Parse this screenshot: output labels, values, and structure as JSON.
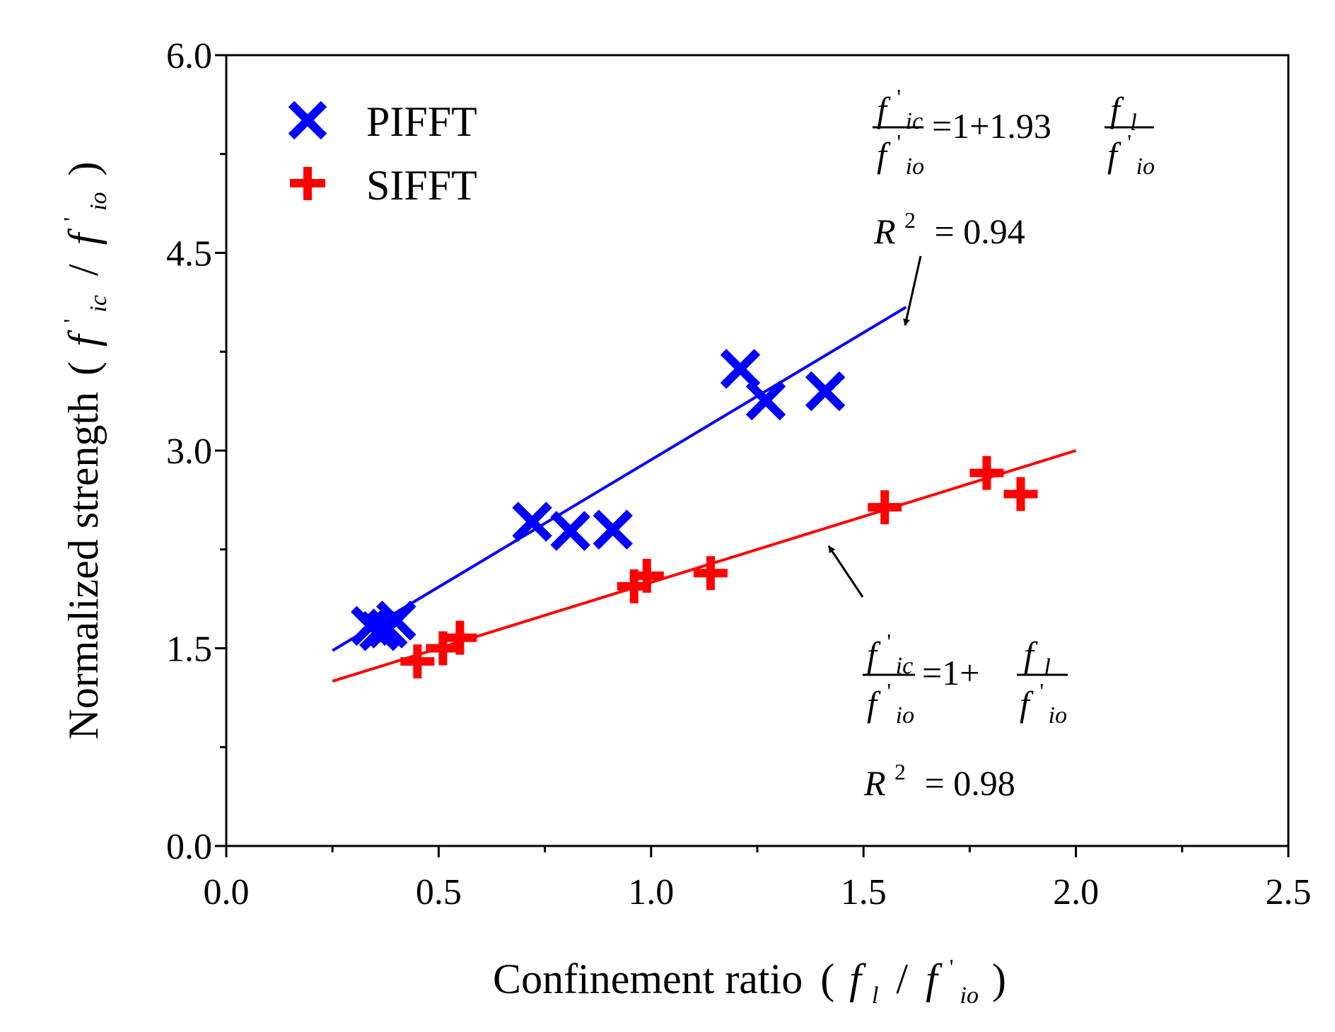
{
  "chart_data": {
    "type": "scatter",
    "xlabel": "Confinement ratio",
    "ylabel": "Normalized strength",
    "xlim": [
      0.0,
      2.5
    ],
    "ylim": [
      0.0,
      6.0
    ],
    "x_ticks": [
      "0.0",
      "0.5",
      "1.0",
      "1.5",
      "2.0",
      "2.5"
    ],
    "y_ticks": [
      "0.0",
      "1.5",
      "3.0",
      "4.5",
      "6.0"
    ],
    "x_tick_values": [
      0.0,
      0.5,
      1.0,
      1.5,
      2.0,
      2.5
    ],
    "y_tick_values": [
      0.0,
      1.5,
      3.0,
      4.5,
      6.0
    ],
    "x_minor_ticks": [
      0.25,
      0.75,
      1.25,
      1.75,
      2.25
    ],
    "y_minor_ticks": [
      0.75,
      2.25,
      3.75,
      5.25
    ],
    "legend_position": "top-left",
    "series": [
      {
        "name": "PIFFT",
        "marker": "x",
        "color": "#0000ff",
        "points": [
          {
            "x": 0.34,
            "y": 1.67
          },
          {
            "x": 0.36,
            "y": 1.63
          },
          {
            "x": 0.38,
            "y": 1.65
          },
          {
            "x": 0.4,
            "y": 1.71
          },
          {
            "x": 0.72,
            "y": 2.46
          },
          {
            "x": 0.81,
            "y": 2.39
          },
          {
            "x": 0.91,
            "y": 2.4
          },
          {
            "x": 1.21,
            "y": 3.62
          },
          {
            "x": 1.27,
            "y": 3.38
          },
          {
            "x": 1.41,
            "y": 3.45
          }
        ],
        "fit": {
          "x_start": 0.25,
          "x_end": 1.6,
          "intercept": 1.0,
          "slope": 1.93
        }
      },
      {
        "name": "SIFFT",
        "marker": "+",
        "color": "#ff0000",
        "points": [
          {
            "x": 0.45,
            "y": 1.4
          },
          {
            "x": 0.51,
            "y": 1.5
          },
          {
            "x": 0.55,
            "y": 1.58
          },
          {
            "x": 0.96,
            "y": 1.97
          },
          {
            "x": 0.99,
            "y": 2.05
          },
          {
            "x": 1.14,
            "y": 2.07
          },
          {
            "x": 1.55,
            "y": 2.57
          },
          {
            "x": 1.79,
            "y": 2.83
          },
          {
            "x": 1.87,
            "y": 2.67
          }
        ],
        "fit": {
          "x_start": 0.25,
          "x_end": 2.0,
          "intercept": 1.0,
          "slope": 1.0
        }
      }
    ],
    "annotations": [
      {
        "series": "PIFFT",
        "equation_rhs": "=1+1.93",
        "r2": "= 0.94"
      },
      {
        "series": "SIFFT",
        "equation_rhs": "=1+",
        "r2": "= 0.98"
      }
    ],
    "symbols": {
      "f": "f",
      "prime": "'",
      "sub_ic": "ic",
      "sub_io": "io",
      "sub_l": "l",
      "R": "R",
      "sup_2": "2",
      "slash": "/",
      "open_paren": "(",
      "close_paren": ")"
    }
  }
}
